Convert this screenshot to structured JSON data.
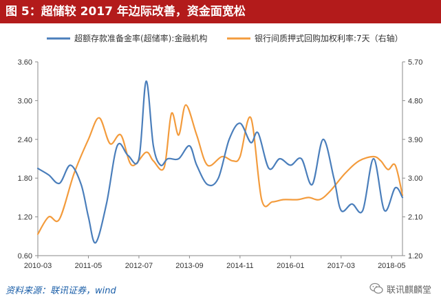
{
  "header": {
    "title": "图 5：超储较 2017 年边际改善，资金面宽松"
  },
  "footer": {
    "source": "资料来源：联讯证券，wind",
    "watermark": "联讯麒麟堂"
  },
  "colors": {
    "left_series": "#4a7ebb",
    "right_series": "#f39b3c",
    "title_bar": "#b31b1b",
    "source_text": "#1a5ea8"
  },
  "icons": {
    "watermark": "wechat-icon"
  },
  "chart_data": {
    "type": "line",
    "x_tick_labels": [
      "2010-03",
      "2011-05",
      "2012-07",
      "2013-09",
      "2014-11",
      "2016-01",
      "2017-03",
      "2018-05"
    ],
    "x_range": [
      "2010-03",
      "2018-08"
    ],
    "y_left": {
      "range": [
        0.6,
        3.6
      ],
      "ticks": [
        "0.60",
        "1.20",
        "1.80",
        "2.40",
        "3.00",
        "3.60"
      ]
    },
    "y_right": {
      "range": [
        1.2,
        5.7
      ],
      "ticks": [
        "1.20",
        "2.10",
        "3.00",
        "3.90",
        "4.80",
        "5.70"
      ]
    },
    "grid": false,
    "legend_position": "top",
    "series": [
      {
        "name": "超额存款准备金率(超储率):金融机构",
        "axis": "left",
        "color": "#4a7ebb",
        "points": [
          [
            "2010-03",
            1.95
          ],
          [
            "2010-06",
            1.85
          ],
          [
            "2010-09",
            1.72
          ],
          [
            "2010-12",
            2.0
          ],
          [
            "2011-03",
            1.7
          ],
          [
            "2011-05",
            1.2
          ],
          [
            "2011-07",
            0.8
          ],
          [
            "2011-10",
            1.4
          ],
          [
            "2012-01",
            2.3
          ],
          [
            "2012-04",
            2.15
          ],
          [
            "2012-07",
            2.1
          ],
          [
            "2012-09",
            3.3
          ],
          [
            "2012-11",
            2.3
          ],
          [
            "2013-01",
            2.0
          ],
          [
            "2013-03",
            2.1
          ],
          [
            "2013-06",
            2.1
          ],
          [
            "2013-09",
            2.3
          ],
          [
            "2013-11",
            2.0
          ],
          [
            "2014-02",
            1.7
          ],
          [
            "2014-05",
            1.8
          ],
          [
            "2014-08",
            2.4
          ],
          [
            "2014-11",
            2.65
          ],
          [
            "2015-02",
            2.35
          ],
          [
            "2015-04",
            2.5
          ],
          [
            "2015-07",
            1.95
          ],
          [
            "2015-10",
            2.1
          ],
          [
            "2016-01",
            2.0
          ],
          [
            "2016-04",
            2.1
          ],
          [
            "2016-07",
            1.7
          ],
          [
            "2016-10",
            2.4
          ],
          [
            "2017-01",
            1.8
          ],
          [
            "2017-03",
            1.3
          ],
          [
            "2017-06",
            1.4
          ],
          [
            "2017-09",
            1.3
          ],
          [
            "2017-12",
            2.1
          ],
          [
            "2018-03",
            1.3
          ],
          [
            "2018-06",
            1.65
          ],
          [
            "2018-08",
            1.5
          ]
        ]
      },
      {
        "name": "银行间质押式回购加权利率:7天（右轴）",
        "axis": "right",
        "color": "#f39b3c",
        "points": [
          [
            "2010-03",
            1.7
          ],
          [
            "2010-06",
            2.1
          ],
          [
            "2010-09",
            2.05
          ],
          [
            "2011-01",
            3.1
          ],
          [
            "2011-05",
            3.9
          ],
          [
            "2011-08",
            4.4
          ],
          [
            "2011-11",
            3.8
          ],
          [
            "2012-02",
            4.0
          ],
          [
            "2012-05",
            3.3
          ],
          [
            "2012-09",
            3.6
          ],
          [
            "2012-11",
            3.4
          ],
          [
            "2013-02",
            3.25
          ],
          [
            "2013-04",
            4.5
          ],
          [
            "2013-06",
            4.0
          ],
          [
            "2013-08",
            4.7
          ],
          [
            "2013-11",
            4.0
          ],
          [
            "2014-02",
            3.3
          ],
          [
            "2014-06",
            3.5
          ],
          [
            "2014-09",
            3.4
          ],
          [
            "2014-11",
            3.5
          ],
          [
            "2015-02",
            4.4
          ],
          [
            "2015-05",
            2.5
          ],
          [
            "2015-08",
            2.45
          ],
          [
            "2015-11",
            2.5
          ],
          [
            "2016-03",
            2.5
          ],
          [
            "2016-06",
            2.55
          ],
          [
            "2016-09",
            2.5
          ],
          [
            "2016-12",
            2.7
          ],
          [
            "2017-04",
            3.1
          ],
          [
            "2017-08",
            3.4
          ],
          [
            "2017-12",
            3.5
          ],
          [
            "2018-02",
            3.4
          ],
          [
            "2018-04",
            3.2
          ],
          [
            "2018-06",
            3.3
          ],
          [
            "2018-08",
            2.6
          ]
        ]
      }
    ]
  }
}
